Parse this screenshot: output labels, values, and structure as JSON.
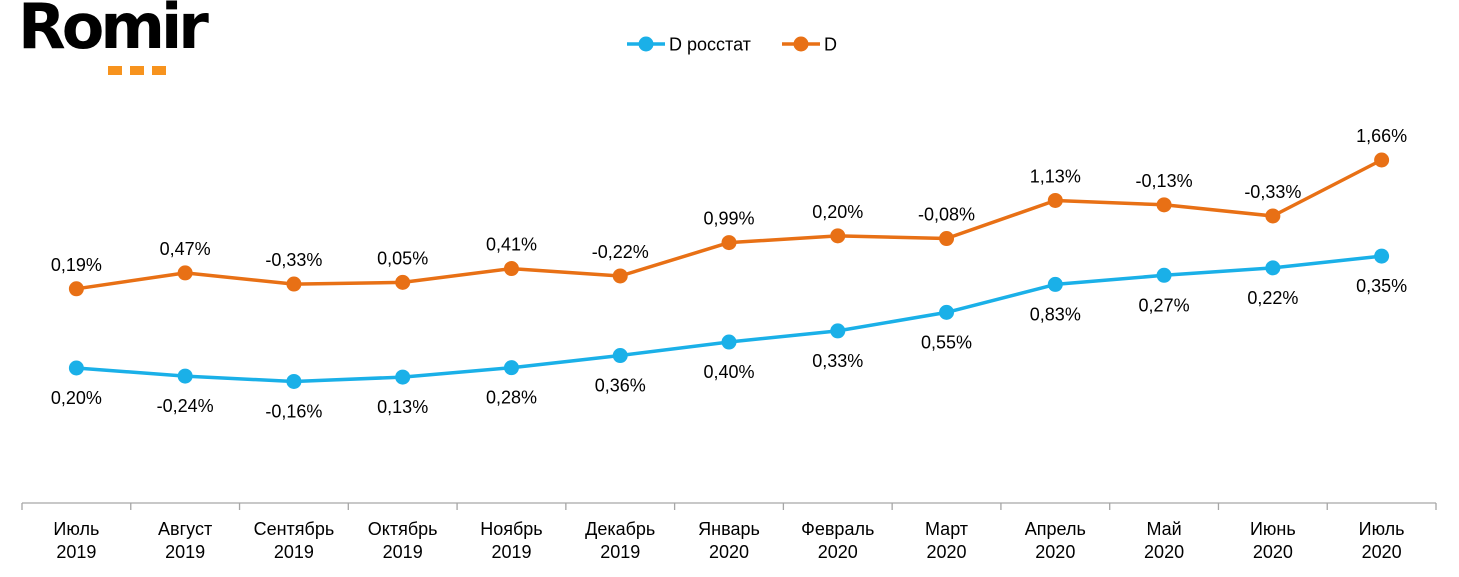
{
  "logo": {
    "text": "Romir",
    "accent_color": "#F7931E"
  },
  "chart_data": {
    "type": "line",
    "categories": [
      [
        "Июль",
        "2019"
      ],
      [
        "Август",
        "2019"
      ],
      [
        "Сентябрь",
        "2019"
      ],
      [
        "Октябрь",
        "2019"
      ],
      [
        "Ноябрь",
        "2019"
      ],
      [
        "Декабрь",
        "2019"
      ],
      [
        "Январь",
        "2020"
      ],
      [
        "Февраль",
        "2020"
      ],
      [
        "Март",
        "2020"
      ],
      [
        "Апрель",
        "2020"
      ],
      [
        "Май",
        "2020"
      ],
      [
        "Июнь",
        "2020"
      ],
      [
        "Июль",
        "2020"
      ]
    ],
    "series": [
      {
        "name": "D росстат",
        "color": "#1AB0E8",
        "values": [
          100.0,
          99.76,
          99.6,
          99.73,
          100.01,
          100.37,
          100.77,
          101.1,
          101.65,
          102.48,
          102.75,
          102.97,
          103.32
        ],
        "labels": [
          "0,20%",
          "-0,24%",
          "-0,16%",
          "0,13%",
          "0,28%",
          "0,36%",
          "0,40%",
          "0,33%",
          "0,55%",
          "0,83%",
          "0,27%",
          "0,22%",
          "0,35%"
        ]
      },
      {
        "name": "D",
        "color": "#E87015",
        "values": [
          102.35,
          102.82,
          102.49,
          102.54,
          102.95,
          102.73,
          103.72,
          103.92,
          103.84,
          104.97,
          104.84,
          104.51,
          106.17
        ],
        "labels": [
          "0,19%",
          "0,47%",
          "-0,33%",
          "0,05%",
          "0,41%",
          "-0,22%",
          "0,99%",
          "0,20%",
          "-0,08%",
          "1,13%",
          "-0,13%",
          "-0,33%",
          "1,66%"
        ]
      }
    ],
    "label_position": [
      "below",
      "above"
    ],
    "legend_position": "top-center",
    "grid": false,
    "y_axis_visible": false
  }
}
